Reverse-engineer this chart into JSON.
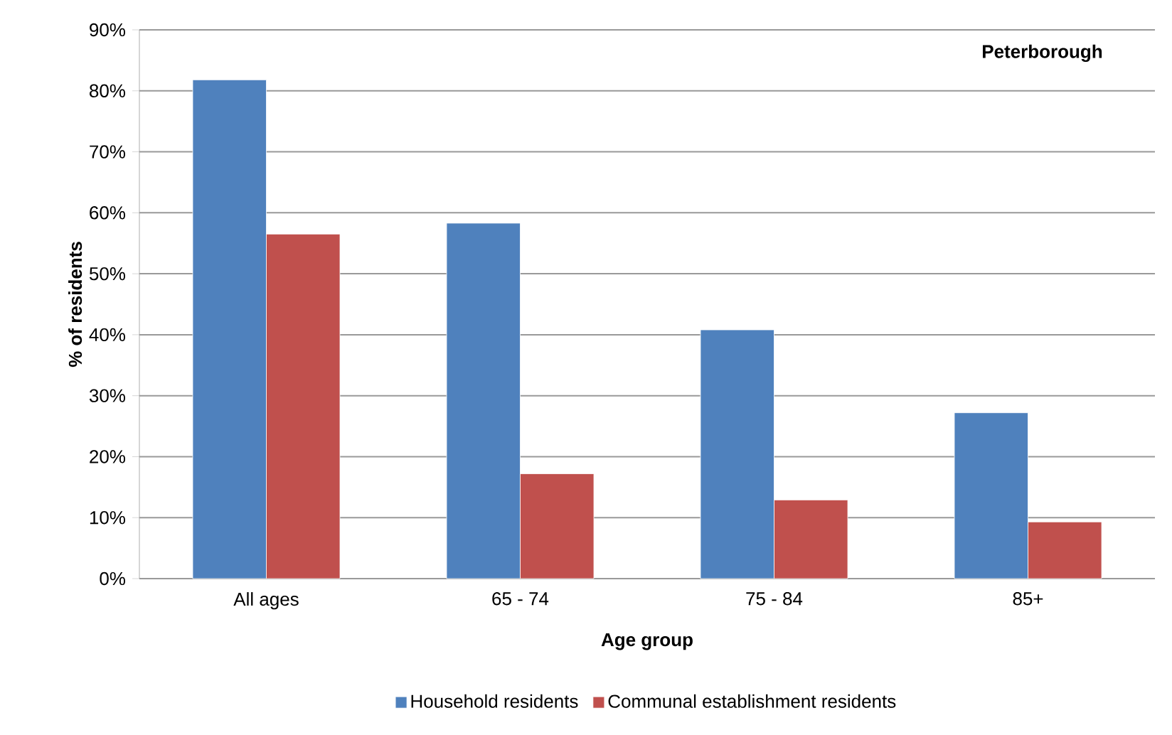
{
  "chart_data": {
    "type": "bar",
    "xlabel": "Age group",
    "ylabel": "% of residents",
    "annotations": [
      "Peterborough"
    ],
    "categories": [
      "All ages",
      "65 - 74",
      "75 - 84",
      "85+"
    ],
    "series": [
      {
        "name": "Household residents",
        "color": "#4f81bd",
        "values": [
          81.8,
          58.3,
          40.8,
          27.2
        ]
      },
      {
        "name": "Communal establishment residents",
        "color": "#c0504d",
        "values": [
          56.5,
          17.2,
          12.9,
          9.3
        ]
      }
    ],
    "ylim": [
      0,
      90
    ],
    "yticks": [
      {
        "value": 0,
        "label": "0%"
      },
      {
        "value": 10,
        "label": "10%"
      },
      {
        "value": 20,
        "label": "20%"
      },
      {
        "value": 30,
        "label": "30%"
      },
      {
        "value": 40,
        "label": "40%"
      },
      {
        "value": 50,
        "label": "50%"
      },
      {
        "value": 60,
        "label": "60%"
      },
      {
        "value": 70,
        "label": "70%"
      },
      {
        "value": 80,
        "label": "80%"
      },
      {
        "value": 90,
        "label": "90%"
      }
    ],
    "grid": "y",
    "legend": "bottom"
  }
}
